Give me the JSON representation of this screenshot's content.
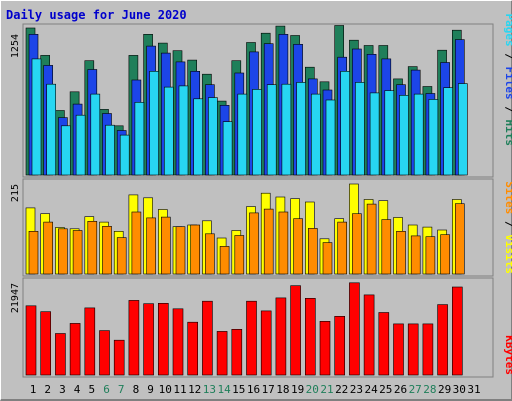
{
  "chart_data": [
    {
      "type": "bar",
      "title": "Daily usage for June 2020",
      "panel": "hits-files-pages",
      "ymax_label": "1254",
      "ymax": 1254,
      "categories": [
        "1",
        "2",
        "3",
        "4",
        "5",
        "6",
        "7",
        "8",
        "9",
        "10",
        "11",
        "12",
        "13",
        "14",
        "15",
        "16",
        "17",
        "18",
        "19",
        "20",
        "21",
        "22",
        "23",
        "24",
        "25",
        "26",
        "27",
        "28",
        "29",
        "30",
        "31"
      ],
      "weekend_days": [
        "6",
        "7",
        "13",
        "14",
        "20",
        "21",
        "27",
        "28"
      ],
      "series": [
        {
          "name": "Hits",
          "color": "#1f7f5a",
          "values": [
            1254,
            1020,
            550,
            710,
            975,
            560,
            420,
            1020,
            1200,
            1125,
            1060,
            980,
            860,
            630,
            975,
            1130,
            1210,
            1270,
            1190,
            920,
            795,
            1275,
            1150,
            1105,
            1105,
            820,
            925,
            755,
            1065,
            1235,
            0
          ]
        },
        {
          "name": "Files",
          "color": "#1c45e8",
          "values": [
            1200,
            935,
            490,
            605,
            900,
            525,
            380,
            810,
            1100,
            1040,
            965,
            885,
            770,
            595,
            870,
            1050,
            1120,
            1200,
            1115,
            820,
            725,
            1005,
            1075,
            1030,
            990,
            770,
            895,
            695,
            960,
            1155,
            0
          ]
        },
        {
          "name": "Pages",
          "color": "#27d6f2",
          "values": [
            990,
            775,
            420,
            510,
            690,
            425,
            340,
            620,
            885,
            750,
            760,
            650,
            660,
            455,
            690,
            730,
            770,
            775,
            790,
            690,
            640,
            885,
            790,
            700,
            720,
            680,
            690,
            645,
            745,
            780,
            0
          ]
        }
      ]
    },
    {
      "type": "bar",
      "panel": "visits-sites",
      "ymax_label": "215",
      "ymax": 215,
      "categories": [
        "1",
        "2",
        "3",
        "4",
        "5",
        "6",
        "7",
        "8",
        "9",
        "10",
        "11",
        "12",
        "13",
        "14",
        "15",
        "16",
        "17",
        "18",
        "19",
        "20",
        "21",
        "22",
        "23",
        "24",
        "25",
        "26",
        "27",
        "28",
        "29",
        "30",
        "31"
      ],
      "series": [
        {
          "name": "Visits",
          "color": "#ffff00",
          "values": [
            158,
            144,
            111,
            108,
            137,
            124,
            102,
            189,
            182,
            154,
            113,
            117,
            127,
            86,
            104,
            161,
            193,
            184,
            180,
            172,
            84,
            132,
            215,
            178,
            175,
            135,
            117,
            112,
            105,
            178,
            0
          ]
        },
        {
          "name": "Sites",
          "color": "#ff8c00",
          "values": [
            102,
            124,
            108,
            104,
            126,
            114,
            87,
            148,
            134,
            136,
            113,
            117,
            96,
            66,
            92,
            146,
            155,
            148,
            132,
            109,
            75,
            124,
            144,
            167,
            130,
            102,
            91,
            89,
            94,
            168,
            0
          ]
        }
      ]
    },
    {
      "type": "bar",
      "panel": "kbytes",
      "ymax_label": "21947",
      "ymax": 21947,
      "categories": [
        "1",
        "2",
        "3",
        "4",
        "5",
        "6",
        "7",
        "8",
        "9",
        "10",
        "11",
        "12",
        "13",
        "14",
        "15",
        "16",
        "17",
        "18",
        "19",
        "20",
        "21",
        "22",
        "23",
        "24",
        "25",
        "26",
        "27",
        "28",
        "29",
        "30",
        "31"
      ],
      "series": [
        {
          "name": "KBytes",
          "color": "#ff0000",
          "values": [
            16500,
            15100,
            9900,
            12300,
            16000,
            10600,
            8300,
            17800,
            17000,
            17100,
            15800,
            12600,
            17600,
            10400,
            10900,
            17600,
            15300,
            18400,
            21300,
            18300,
            12800,
            14000,
            22000,
            19100,
            14900,
            12200,
            12200,
            12200,
            16800,
            21000,
            0
          ]
        }
      ]
    }
  ],
  "legend": {
    "pages": "Pages",
    "files": "Files",
    "hits": "Hits",
    "sites": "Sites",
    "visits": "Visits",
    "kbytes": "KBytes",
    "slash": " / "
  },
  "colors": {
    "pages": "#27d6f2",
    "files": "#1c45e8",
    "hits": "#1f7f5a",
    "sites": "#ff8c00",
    "visits": "#ffff00",
    "kbytes": "#ff0000",
    "title": "#0000cc",
    "weekday_label": "#000000",
    "weekend_label": "#1f7f5a"
  }
}
